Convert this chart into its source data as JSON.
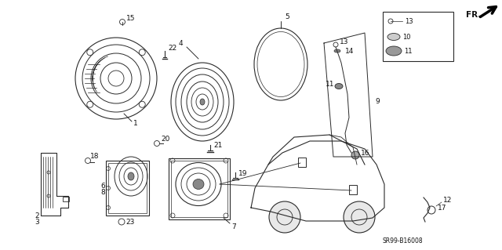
{
  "bg_color": "#ffffff",
  "line_color": "#2a2a2a",
  "text_color": "#111111",
  "fig_width": 6.4,
  "fig_height": 3.19,
  "dpi": 100,
  "part_number_text": "SR99-B16008"
}
